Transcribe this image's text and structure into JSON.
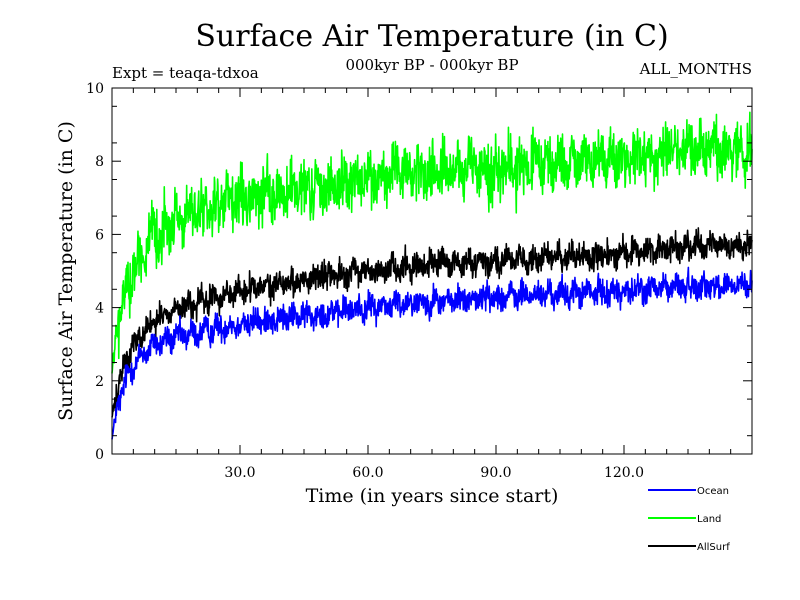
{
  "chart_data": {
    "type": "line",
    "title": "Surface Air Temperature (in C)",
    "subtitle_left": "Expt = teaqa-tdxoa",
    "subtitle_center": "000kyr BP - 000kyr BP",
    "subtitle_right": "ALL_MONTHS",
    "xlabel": "Time (in years since start)",
    "ylabel": "Surface Air Temperature (in C)",
    "xlim": [
      0,
      150
    ],
    "ylim": [
      0,
      10
    ],
    "xticks": [
      30,
      60,
      90,
      120
    ],
    "xtick_labels": [
      "30.0",
      "60.0",
      "90.0",
      "120.0"
    ],
    "yticks": [
      0,
      2,
      4,
      6,
      8,
      10
    ],
    "ytick_labels": [
      "0",
      "2",
      "4",
      "6",
      "8",
      "10"
    ],
    "legend_position": "bottom-right, outside plot",
    "series": [
      {
        "name": "Ocean",
        "color": "#0000ff",
        "noise": 0.22,
        "x": [
          0,
          1,
          2,
          3,
          5,
          7,
          10,
          13,
          15,
          20,
          25,
          30,
          40,
          50,
          60,
          70,
          80,
          90,
          100,
          110,
          120,
          130,
          140,
          150
        ],
        "values": [
          0.4,
          1.1,
          1.6,
          2.0,
          2.4,
          2.7,
          3.0,
          3.1,
          3.2,
          3.3,
          3.45,
          3.55,
          3.7,
          3.85,
          4.0,
          4.15,
          4.2,
          4.3,
          4.35,
          4.4,
          4.45,
          4.55,
          4.6,
          4.6
        ]
      },
      {
        "name": "Land",
        "color": "#00ff00",
        "noise": 0.45,
        "x": [
          0,
          1,
          2,
          3,
          5,
          7,
          10,
          13,
          15,
          20,
          25,
          30,
          40,
          50,
          60,
          70,
          80,
          90,
          100,
          110,
          120,
          130,
          140,
          150
        ],
        "values": [
          2.2,
          3.2,
          3.9,
          4.4,
          5.0,
          5.5,
          5.9,
          6.2,
          6.4,
          6.6,
          6.8,
          6.9,
          7.1,
          7.3,
          7.5,
          7.7,
          7.7,
          7.8,
          7.9,
          8.0,
          8.1,
          8.25,
          8.35,
          8.3
        ]
      },
      {
        "name": "AllSurf",
        "color": "#000000",
        "noise": 0.22,
        "x": [
          0,
          1,
          2,
          3,
          5,
          7,
          10,
          13,
          15,
          20,
          25,
          30,
          40,
          50,
          60,
          70,
          80,
          90,
          100,
          110,
          120,
          130,
          140,
          150
        ],
        "values": [
          1.0,
          1.6,
          2.1,
          2.5,
          3.0,
          3.3,
          3.6,
          3.85,
          3.95,
          4.1,
          4.3,
          4.45,
          4.65,
          4.85,
          5.0,
          5.15,
          5.2,
          5.3,
          5.35,
          5.4,
          5.5,
          5.6,
          5.7,
          5.7
        ]
      }
    ]
  }
}
